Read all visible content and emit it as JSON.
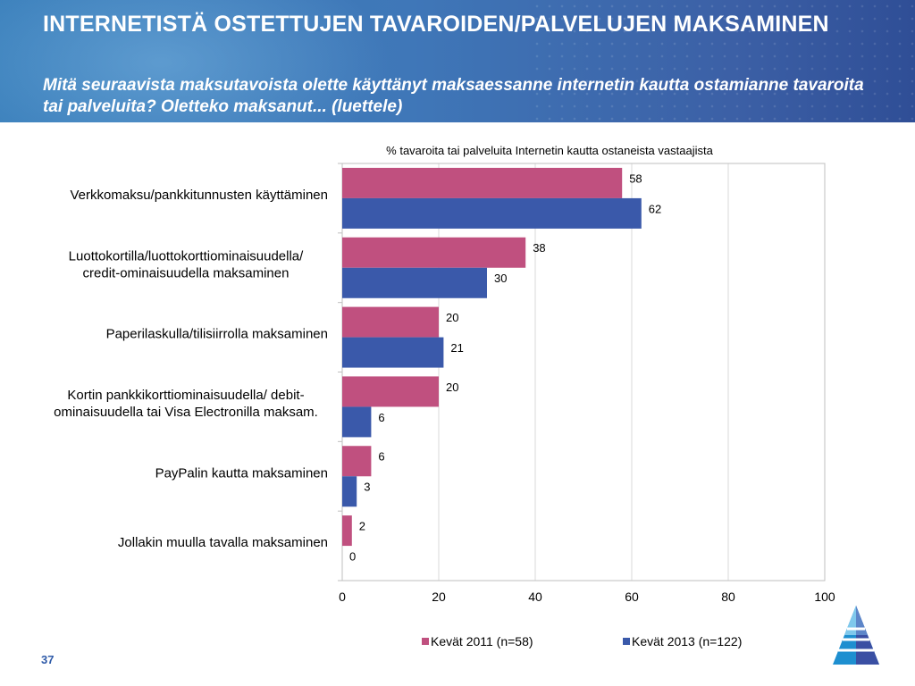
{
  "slide": {
    "title": "INTERNETISTÄ OSTETTUJEN TAVAROIDEN/PALVELUJEN MAKSAMINEN",
    "subtitle": "Mitä seuraavista maksutavoista olette käyttänyt maksaessanne internetin kautta ostamianne tavaroita tai palveluita? Oletteko maksanut... (luettele)",
    "page_number": "37"
  },
  "colors": {
    "series_2011": "#c0507f",
    "series_2013": "#3a59aa",
    "header_bg": "#3d6eb3",
    "page_number": "#2e5aa8"
  },
  "chart_data": {
    "type": "bar",
    "orientation": "horizontal",
    "title": "% tavaroita tai palveluita Internetin kautta ostaneista vastaajista",
    "categories": [
      [
        "Verkkomaksu/pankkitunnusten käyttäminen"
      ],
      [
        "Luottokortilla/luottokorttiominaisuudella/",
        "credit-ominaisuudella maksaminen"
      ],
      [
        "Paperilaskulla/tilisiirrolla maksaminen"
      ],
      [
        "Kortin pankkikorttiominaisuudella/ debit-",
        "ominaisuudella tai Visa Electronilla maksam."
      ],
      [
        "PayPalin kautta maksaminen"
      ],
      [
        "Jollakin muulla tavalla maksaminen"
      ]
    ],
    "series": [
      {
        "name": "Kevät 2011 (n=58)",
        "values": [
          58,
          38,
          20,
          20,
          6,
          2
        ]
      },
      {
        "name": "Kevät 2013 (n=122)",
        "values": [
          62,
          30,
          21,
          6,
          3,
          0
        ]
      }
    ],
    "xlim": [
      0,
      100
    ],
    "xticks": [
      0,
      20,
      40,
      60,
      80,
      100
    ],
    "grid": "vertical",
    "legend": "bottom",
    "data_labels": true
  }
}
